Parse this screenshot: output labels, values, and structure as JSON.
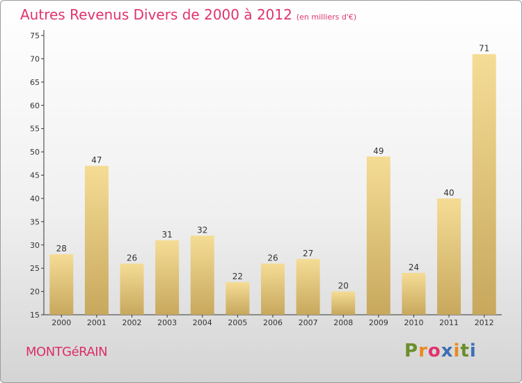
{
  "header": {
    "title": "Autres Revenus Divers de 2000 à 2012",
    "unit": "(en milliers d'€)"
  },
  "footer": {
    "commune": "MONTGéRAIN",
    "logo": [
      "P",
      "r",
      "o",
      "x",
      "i",
      "t",
      "i"
    ],
    "logo_colors": [
      "#6b8e2a",
      "#e98a1e",
      "#e0336e",
      "#3b6fb6",
      "#e98a1e",
      "#6b8e2a",
      "#3b6fb6"
    ]
  },
  "colors": {
    "bar_light": "#f5dc95",
    "bar_dark": "#c7a85d",
    "text": "#333333"
  },
  "chart_data": {
    "type": "bar",
    "categories": [
      "2000",
      "2001",
      "2002",
      "2003",
      "2004",
      "2005",
      "2006",
      "2007",
      "2008",
      "2009",
      "2010",
      "2011",
      "2012"
    ],
    "values": [
      28,
      47,
      26,
      31,
      32,
      22,
      26,
      27,
      20,
      49,
      24,
      40,
      71
    ],
    "title": "Autres Revenus Divers de 2000 à 2012",
    "ylim": [
      15,
      75
    ],
    "yticks": [
      15,
      20,
      25,
      30,
      35,
      40,
      45,
      50,
      55,
      60,
      65,
      70,
      75
    ],
    "grid": false,
    "data_labels": true
  }
}
